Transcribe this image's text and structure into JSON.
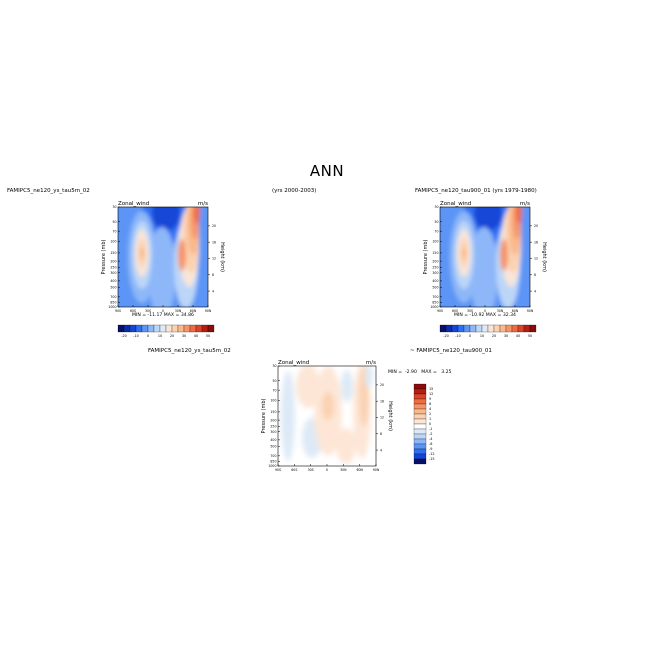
{
  "page": {
    "title": "ANN",
    "left_case": "FAMIPC5_ne120_ys_tau5m_02",
    "left_years": "(yrs 2000-2003)",
    "right_case": "FAMIPC5_ne120_tau900_01 (yrs 1979-1980)",
    "diff_label_left": "FAMIPC5_ne120_ys_tau5m_02",
    "diff_label_right": "~ FAMIPC5_ne120_tau900_01"
  },
  "chart_data": [
    {
      "type": "heatmap",
      "panel": "left",
      "title": "Zonal_wind",
      "units": "m/s",
      "ylabel": "Pressure (mb)",
      "y2label": "Height (km)",
      "x_ticks": [
        "90S",
        "60S",
        "30S",
        "0",
        "30N",
        "60N",
        "90N"
      ],
      "y_ticks": [
        "30",
        "50",
        "70",
        "100",
        "150",
        "200",
        "250",
        "300",
        "400",
        "500",
        "700",
        "850",
        "1000"
      ],
      "y2_ticks": [
        "20",
        "16",
        "12",
        "8",
        "4"
      ],
      "stats": "MIN = -11.17   MAX =  34.86",
      "colorbar_ticks": [
        "-20",
        "-10",
        "0",
        "10",
        "20",
        "30",
        "40",
        "50",
        "70"
      ],
      "min": -11.17,
      "max": 34.86
    },
    {
      "type": "heatmap",
      "panel": "right",
      "title": "Zonal_wind",
      "units": "m/s",
      "ylabel": "Pressure (mb)",
      "y2label": "Height (km)",
      "x_ticks": [
        "90S",
        "60S",
        "30S",
        "0",
        "30N",
        "60N",
        "90N"
      ],
      "y_ticks": [
        "30",
        "50",
        "70",
        "100",
        "150",
        "200",
        "250",
        "300",
        "400",
        "500",
        "700",
        "850",
        "1000"
      ],
      "y2_ticks": [
        "20",
        "16",
        "12",
        "8",
        "4"
      ],
      "stats": "MIN = -10.92   MAX =  32.34",
      "colorbar_ticks": [
        "-20",
        "-10",
        "0",
        "10",
        "20",
        "30",
        "40",
        "50",
        "70"
      ],
      "min": -10.92,
      "max": 32.34
    },
    {
      "type": "heatmap",
      "panel": "difference",
      "title": "Zonal_wind",
      "units": "m/s",
      "ylabel": "Pressure (mb)",
      "y2label": "Height (km)",
      "x_ticks": [
        "90S",
        "60S",
        "30S",
        "0",
        "30N",
        "60N",
        "90N"
      ],
      "y_ticks": [
        "30",
        "50",
        "70",
        "100",
        "150",
        "200",
        "250",
        "300",
        "400",
        "500",
        "700",
        "850",
        "1000"
      ],
      "y2_ticks": [
        "20",
        "16",
        "12",
        "8",
        "4"
      ],
      "stats": "MIN =  -2.90   MAX =   3.25",
      "colorbar_ticks": [
        "15",
        "12",
        "9",
        "6",
        "4",
        "2",
        "1",
        "0",
        "-1",
        "-2",
        "-4",
        "-6",
        "-9",
        "-12",
        "-15"
      ],
      "min": -2.9,
      "max": 3.25
    }
  ],
  "colors": {
    "full_field_scale": [
      "#08106a",
      "#0b2ba8",
      "#1446d6",
      "#2f6ff2",
      "#5b95f5",
      "#8db7f8",
      "#bcd6f8",
      "#dde9f6",
      "#f7e5d8",
      "#fbd1b1",
      "#fab88a",
      "#f59567",
      "#ec6c43",
      "#d9452a",
      "#b41e15",
      "#8b0c0c"
    ],
    "diff_scale": [
      "#8b0c0c",
      "#b41e15",
      "#d9452a",
      "#ec6c43",
      "#f59567",
      "#fab88a",
      "#fbd1b1",
      "#fde6d6",
      "#ffffff",
      "#dde9f6",
      "#bcd6f8",
      "#8db7f8",
      "#5b95f5",
      "#2f6ff2",
      "#1446d6",
      "#08106a"
    ]
  }
}
